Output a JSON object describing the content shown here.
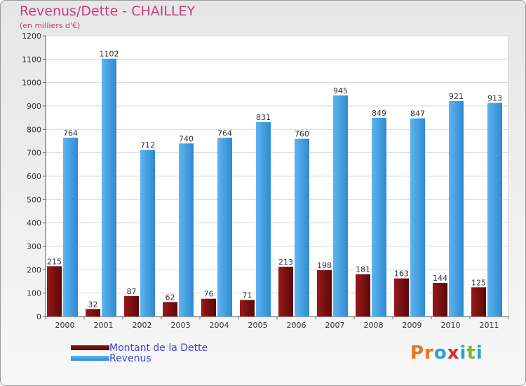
{
  "title": "Revenus/Dette - CHAILLEY",
  "subtitle": "(en milliers d'€)",
  "chart_data": {
    "type": "bar",
    "categories": [
      "2000",
      "2001",
      "2002",
      "2003",
      "2004",
      "2005",
      "2006",
      "2007",
      "2008",
      "2009",
      "2010",
      "2011"
    ],
    "series": [
      {
        "name": "Montant de la Dette",
        "color": "#7b1010",
        "values": [
          215,
          32,
          87,
          62,
          76,
          71,
          213,
          198,
          181,
          163,
          144,
          125
        ]
      },
      {
        "name": "Revenus",
        "color": "#4ea7e6",
        "values": [
          764,
          1102,
          712,
          740,
          764,
          831,
          760,
          945,
          849,
          847,
          921,
          913
        ]
      }
    ],
    "ylim": [
      0,
      1200
    ],
    "yticks": [
      0,
      100,
      200,
      300,
      400,
      500,
      600,
      700,
      800,
      900,
      1000,
      1100,
      1200
    ],
    "grid": true,
    "legend_position": "bottom-left"
  },
  "logo_text": "Proxiti",
  "logo_colors": [
    "#e8751a",
    "#e8751a",
    "#2aa0d8",
    "#d0302f",
    "#2aa0d8",
    "#7cb82f",
    "#2aa0d8"
  ]
}
